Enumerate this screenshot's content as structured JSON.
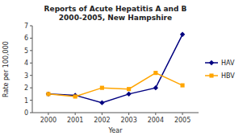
{
  "chart_data": {
    "type": "line",
    "title": "Reports of Acute Hepatitis A and B\n2000-2005, New Hampshire",
    "x_label": "Year",
    "y_label": "Rate per 100,000",
    "x": [
      2000,
      2001,
      2002,
      2003,
      2004,
      2005
    ],
    "series": [
      {
        "name": "HAV",
        "color": "#000080",
        "marker": "diamond",
        "values": [
          1.5,
          1.4,
          0.8,
          1.5,
          2.0,
          6.3
        ]
      },
      {
        "name": "HBV",
        "color": "#FFA500",
        "marker": "square",
        "values": [
          1.5,
          1.3,
          2.0,
          1.9,
          3.2,
          2.2
        ]
      }
    ],
    "xlim": [
      1999.4,
      2005.6
    ],
    "xticks": [
      2000,
      2001,
      2002,
      2003,
      2004,
      2005
    ],
    "ylim": [
      0,
      7
    ],
    "yticks": [
      0,
      1,
      2,
      3,
      4,
      5,
      6,
      7
    ],
    "grid": false,
    "legend": "right"
  }
}
